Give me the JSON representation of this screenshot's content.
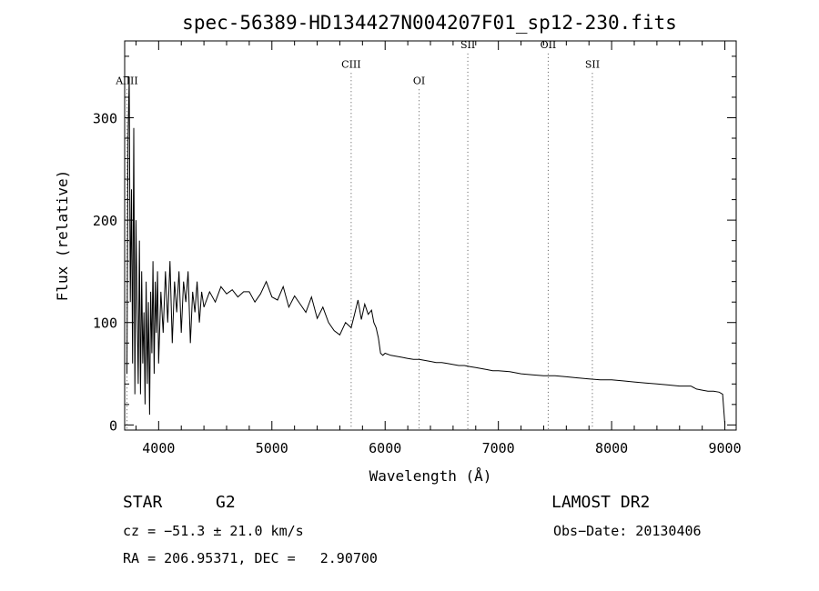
{
  "chart_data": {
    "type": "line",
    "title": "spec-56389-HD134427N004207F01_sp12-230.fits",
    "xlabel": "Wavelength (Å)",
    "ylabel": "Flux (relative)",
    "xlim": [
      3700,
      9100
    ],
    "ylim": [
      -5,
      375
    ],
    "x_ticks": [
      4000,
      5000,
      6000,
      7000,
      8000,
      9000
    ],
    "y_ticks": [
      0,
      100,
      200,
      300
    ],
    "grid": false,
    "series": [
      {
        "x": [
          3720,
          3730,
          3740,
          3750,
          3760,
          3770,
          3780,
          3790,
          3800,
          3810,
          3820,
          3830,
          3840,
          3850,
          3860,
          3870,
          3880,
          3890,
          3900,
          3910,
          3920,
          3930,
          3940,
          3950,
          3960,
          3970,
          3980,
          3990,
          4000,
          4020,
          4040,
          4060,
          4080,
          4100,
          4120,
          4140,
          4160,
          4180,
          4200,
          4220,
          4240,
          4260,
          4280,
          4300,
          4320,
          4340,
          4360,
          4380,
          4400,
          4450,
          4500,
          4550,
          4600,
          4650,
          4700,
          4750,
          4800,
          4850,
          4900,
          4950,
          5000,
          5050,
          5100,
          5150,
          5200,
          5250,
          5300,
          5350,
          5400,
          5450,
          5500,
          5550,
          5600,
          5650,
          5700,
          5730,
          5760,
          5790,
          5820,
          5850,
          5880,
          5900,
          5920,
          5940,
          5960,
          5980,
          6000,
          6050,
          6100,
          6150,
          6200,
          6250,
          6300,
          6350,
          6400,
          6450,
          6500,
          6550,
          6600,
          6650,
          6700,
          6750,
          6800,
          6850,
          6900,
          6950,
          7000,
          7100,
          7200,
          7300,
          7400,
          7500,
          7600,
          7700,
          7800,
          7900,
          8000,
          8100,
          8200,
          8300,
          8400,
          8500,
          8600,
          8700,
          8750,
          8800,
          8850,
          8900,
          8950,
          8980,
          9000
        ],
        "y": [
          50,
          280,
          340,
          120,
          230,
          60,
          290,
          30,
          200,
          110,
          40,
          180,
          30,
          150,
          60,
          110,
          20,
          140,
          40,
          120,
          10,
          130,
          70,
          160,
          50,
          140,
          90,
          150,
          60,
          130,
          90,
          150,
          100,
          160,
          80,
          140,
          110,
          150,
          90,
          140,
          120,
          150,
          80,
          130,
          110,
          140,
          100,
          130,
          115,
          130,
          120,
          135,
          128,
          132,
          125,
          130,
          130,
          120,
          128,
          140,
          125,
          122,
          135,
          115,
          126,
          118,
          110,
          125,
          104,
          115,
          100,
          92,
          88,
          100,
          95,
          108,
          122,
          103,
          118,
          108,
          112,
          100,
          95,
          85,
          70,
          68,
          70,
          68,
          67,
          66,
          65,
          64,
          64,
          63,
          62,
          61,
          61,
          60,
          59,
          58,
          58,
          57,
          56,
          55,
          54,
          53,
          53,
          52,
          50,
          49,
          48,
          48,
          47,
          46,
          45,
          44,
          44,
          43,
          42,
          41,
          40,
          39,
          38,
          38,
          35,
          34,
          33,
          33,
          32,
          30,
          0
        ],
        "color": "#000000"
      }
    ],
    "line_markers": [
      {
        "label": "AlIII",
        "x": 3720,
        "label_y": 333
      },
      {
        "label": "CIII",
        "x": 5700,
        "label_y": 349
      },
      {
        "label": "OI",
        "x": 6300,
        "label_y": 333
      },
      {
        "label": "SII",
        "x": 6730,
        "label_y": 368
      },
      {
        "label": "OII",
        "x": 7440,
        "label_y": 368
      },
      {
        "label": "SII",
        "x": 7830,
        "label_y": 349
      }
    ]
  },
  "info": {
    "object_class": "STAR",
    "subclass": "G2",
    "survey": "LAMOST DR2",
    "cz": "cz = −51.3 ± 21.0 km/s",
    "obs_date": "Obs−Date: 20130406",
    "coords": "RA = 206.95371, DEC =   2.90700"
  }
}
